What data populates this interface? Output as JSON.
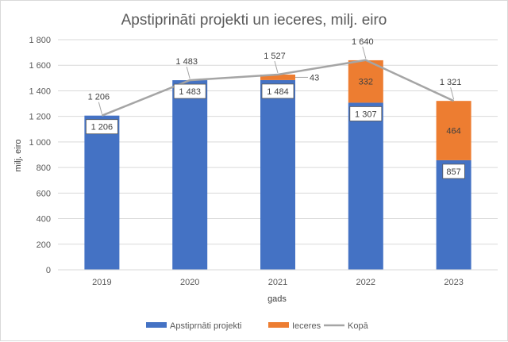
{
  "chart_data": {
    "type": "bar",
    "stacked": true,
    "title": "Apstiprināti projekti un ieceres, milj. eiro",
    "xlabel": "gads",
    "ylabel": "milj. eiro",
    "categories": [
      "2019",
      "2020",
      "2021",
      "2022",
      "2023"
    ],
    "ylim": [
      0,
      1800
    ],
    "yticks": [
      0,
      200,
      400,
      600,
      800,
      1000,
      1200,
      1400,
      1600,
      1800
    ],
    "ytick_labels": [
      "0",
      "200",
      "400",
      "600",
      "800",
      "1 000",
      "1 200",
      "1 400",
      "1 600",
      "1 800"
    ],
    "grid": true,
    "legend_position": "bottom",
    "series": [
      {
        "name": "Apstiprnāti projekti",
        "kind": "bar",
        "color": "#4472c4",
        "values": [
          1206,
          1483,
          1484,
          1307,
          857
        ],
        "labels": [
          "1 206",
          "1 483",
          "1 484",
          "1 307",
          "857"
        ]
      },
      {
        "name": "Ieceres",
        "kind": "bar",
        "color": "#ed7d31",
        "values": [
          0,
          0,
          43,
          332,
          464
        ],
        "labels": [
          "",
          "",
          "43",
          "332",
          "464"
        ]
      },
      {
        "name": "Kopā",
        "kind": "line",
        "color": "#a5a5a5",
        "values": [
          1206,
          1483,
          1527,
          1640,
          1321
        ],
        "labels": [
          "1 206",
          "1 483",
          "1 527",
          "1 640",
          "1 321"
        ]
      }
    ]
  }
}
